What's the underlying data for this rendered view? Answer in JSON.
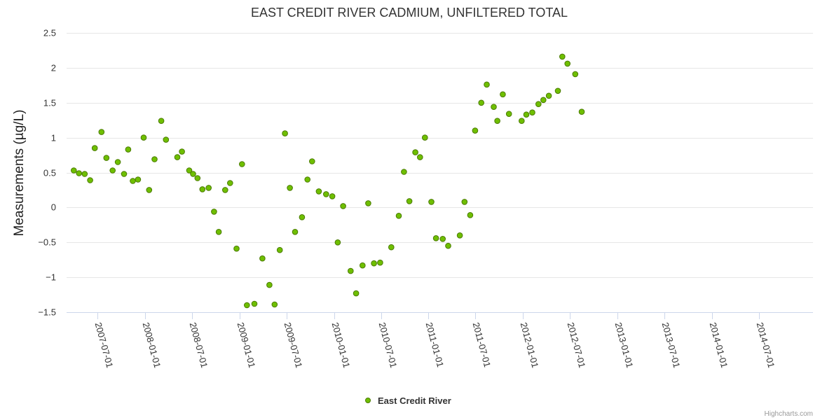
{
  "chart_data": {
    "type": "scatter",
    "title": "EAST CREDIT RIVER CADMIUM, UNFILTERED TOTAL",
    "ylabel": "Measurements (µg/L)",
    "xlabel": "",
    "ylim": [
      -1.5,
      2.5
    ],
    "xlim": [
      "2007-03-04",
      "2015-01-26"
    ],
    "y_ticks": [
      2.5,
      2,
      1.5,
      1,
      0.5,
      0,
      -0.5,
      -1,
      -1.5
    ],
    "y_tick_labels": [
      "2.5",
      "2",
      "1.5",
      "1",
      "0.5",
      "0",
      "−0.5",
      "−1",
      "−1.5"
    ],
    "x_ticks": [
      "2007-07-01",
      "2008-01-01",
      "2008-07-01",
      "2009-01-01",
      "2009-07-01",
      "2010-01-01",
      "2010-07-01",
      "2011-01-01",
      "2011-07-01",
      "2012-01-01",
      "2012-07-01",
      "2013-01-01",
      "2013-07-01",
      "2014-01-01",
      "2014-07-01"
    ],
    "grid": true,
    "legend": "bottom-center",
    "series": [
      {
        "name": "East Credit River",
        "color": "#6aa84f",
        "marker_fill": "#6fbf00",
        "marker_stroke": "#4a7a00",
        "points": [
          {
            "x": "2007-04-01",
            "y": 0.53
          },
          {
            "x": "2007-04-21",
            "y": 0.49
          },
          {
            "x": "2007-05-13",
            "y": 0.48
          },
          {
            "x": "2007-06-03",
            "y": 0.39
          },
          {
            "x": "2007-06-21",
            "y": 0.85
          },
          {
            "x": "2007-07-17",
            "y": 1.08
          },
          {
            "x": "2007-08-05",
            "y": 0.71
          },
          {
            "x": "2007-08-29",
            "y": 0.53
          },
          {
            "x": "2007-09-18",
            "y": 0.65
          },
          {
            "x": "2007-10-12",
            "y": 0.48
          },
          {
            "x": "2007-10-28",
            "y": 0.83
          },
          {
            "x": "2007-11-15",
            "y": 0.38
          },
          {
            "x": "2007-12-05",
            "y": 0.4
          },
          {
            "x": "2007-12-27",
            "y": 1.0
          },
          {
            "x": "2008-01-17",
            "y": 0.25
          },
          {
            "x": "2008-02-07",
            "y": 0.69
          },
          {
            "x": "2008-03-04",
            "y": 1.24
          },
          {
            "x": "2008-03-22",
            "y": 0.97
          },
          {
            "x": "2008-05-05",
            "y": 0.72
          },
          {
            "x": "2008-05-23",
            "y": 0.8
          },
          {
            "x": "2008-06-20",
            "y": 0.53
          },
          {
            "x": "2008-07-05",
            "y": 0.48
          },
          {
            "x": "2008-07-22",
            "y": 0.42
          },
          {
            "x": "2008-08-10",
            "y": 0.26
          },
          {
            "x": "2008-09-03",
            "y": 0.28
          },
          {
            "x": "2008-09-24",
            "y": -0.06
          },
          {
            "x": "2008-10-12",
            "y": -0.35
          },
          {
            "x": "2008-11-06",
            "y": 0.25
          },
          {
            "x": "2008-11-25",
            "y": 0.35
          },
          {
            "x": "2008-12-20",
            "y": -0.59
          },
          {
            "x": "2009-01-10",
            "y": 0.62
          },
          {
            "x": "2009-01-29",
            "y": -1.4
          },
          {
            "x": "2009-02-27",
            "y": -1.38
          },
          {
            "x": "2009-03-30",
            "y": -0.73
          },
          {
            "x": "2009-04-26",
            "y": -1.11
          },
          {
            "x": "2009-05-16",
            "y": -1.39
          },
          {
            "x": "2009-06-05",
            "y": -0.61
          },
          {
            "x": "2009-06-25",
            "y": 1.06
          },
          {
            "x": "2009-07-14",
            "y": 0.28
          },
          {
            "x": "2009-08-03",
            "y": -0.35
          },
          {
            "x": "2009-08-30",
            "y": -0.14
          },
          {
            "x": "2009-09-20",
            "y": 0.4
          },
          {
            "x": "2009-10-08",
            "y": 0.66
          },
          {
            "x": "2009-11-03",
            "y": 0.23
          },
          {
            "x": "2009-12-01",
            "y": 0.19
          },
          {
            "x": "2009-12-25",
            "y": 0.16
          },
          {
            "x": "2010-01-15",
            "y": -0.5
          },
          {
            "x": "2010-02-05",
            "y": 0.02
          },
          {
            "x": "2010-03-06",
            "y": -0.91
          },
          {
            "x": "2010-03-27",
            "y": -1.23
          },
          {
            "x": "2010-04-21",
            "y": -0.83
          },
          {
            "x": "2010-05-13",
            "y": 0.06
          },
          {
            "x": "2010-06-04",
            "y": -0.8
          },
          {
            "x": "2010-06-28",
            "y": -0.79
          },
          {
            "x": "2010-08-10",
            "y": -0.57
          },
          {
            "x": "2010-09-08",
            "y": -0.12
          },
          {
            "x": "2010-09-28",
            "y": 0.51
          },
          {
            "x": "2010-10-19",
            "y": 0.09
          },
          {
            "x": "2010-11-11",
            "y": 0.79
          },
          {
            "x": "2010-11-29",
            "y": 0.72
          },
          {
            "x": "2010-12-18",
            "y": 1.0
          },
          {
            "x": "2011-01-12",
            "y": 0.08
          },
          {
            "x": "2011-01-30",
            "y": -0.44
          },
          {
            "x": "2011-02-25",
            "y": -0.45
          },
          {
            "x": "2011-03-18",
            "y": -0.55
          },
          {
            "x": "2011-05-02",
            "y": -0.4
          },
          {
            "x": "2011-05-20",
            "y": 0.08
          },
          {
            "x": "2011-06-11",
            "y": -0.11
          },
          {
            "x": "2011-06-30",
            "y": 1.1
          },
          {
            "x": "2011-07-24",
            "y": 1.5
          },
          {
            "x": "2011-08-14",
            "y": 1.76
          },
          {
            "x": "2011-09-10",
            "y": 1.44
          },
          {
            "x": "2011-09-24",
            "y": 1.24
          },
          {
            "x": "2011-10-15",
            "y": 1.62
          },
          {
            "x": "2011-11-08",
            "y": 1.34
          },
          {
            "x": "2011-12-27",
            "y": 1.24
          },
          {
            "x": "2012-01-14",
            "y": 1.33
          },
          {
            "x": "2012-02-06",
            "y": 1.36
          },
          {
            "x": "2012-03-01",
            "y": 1.48
          },
          {
            "x": "2012-03-20",
            "y": 1.54
          },
          {
            "x": "2012-04-10",
            "y": 1.6
          },
          {
            "x": "2012-05-15",
            "y": 1.67
          },
          {
            "x": "2012-06-01",
            "y": 2.16
          },
          {
            "x": "2012-06-21",
            "y": 2.06
          },
          {
            "x": "2012-07-21",
            "y": 1.91
          },
          {
            "x": "2012-08-15",
            "y": 1.37
          }
        ]
      }
    ]
  },
  "credit": "Highcharts.com"
}
